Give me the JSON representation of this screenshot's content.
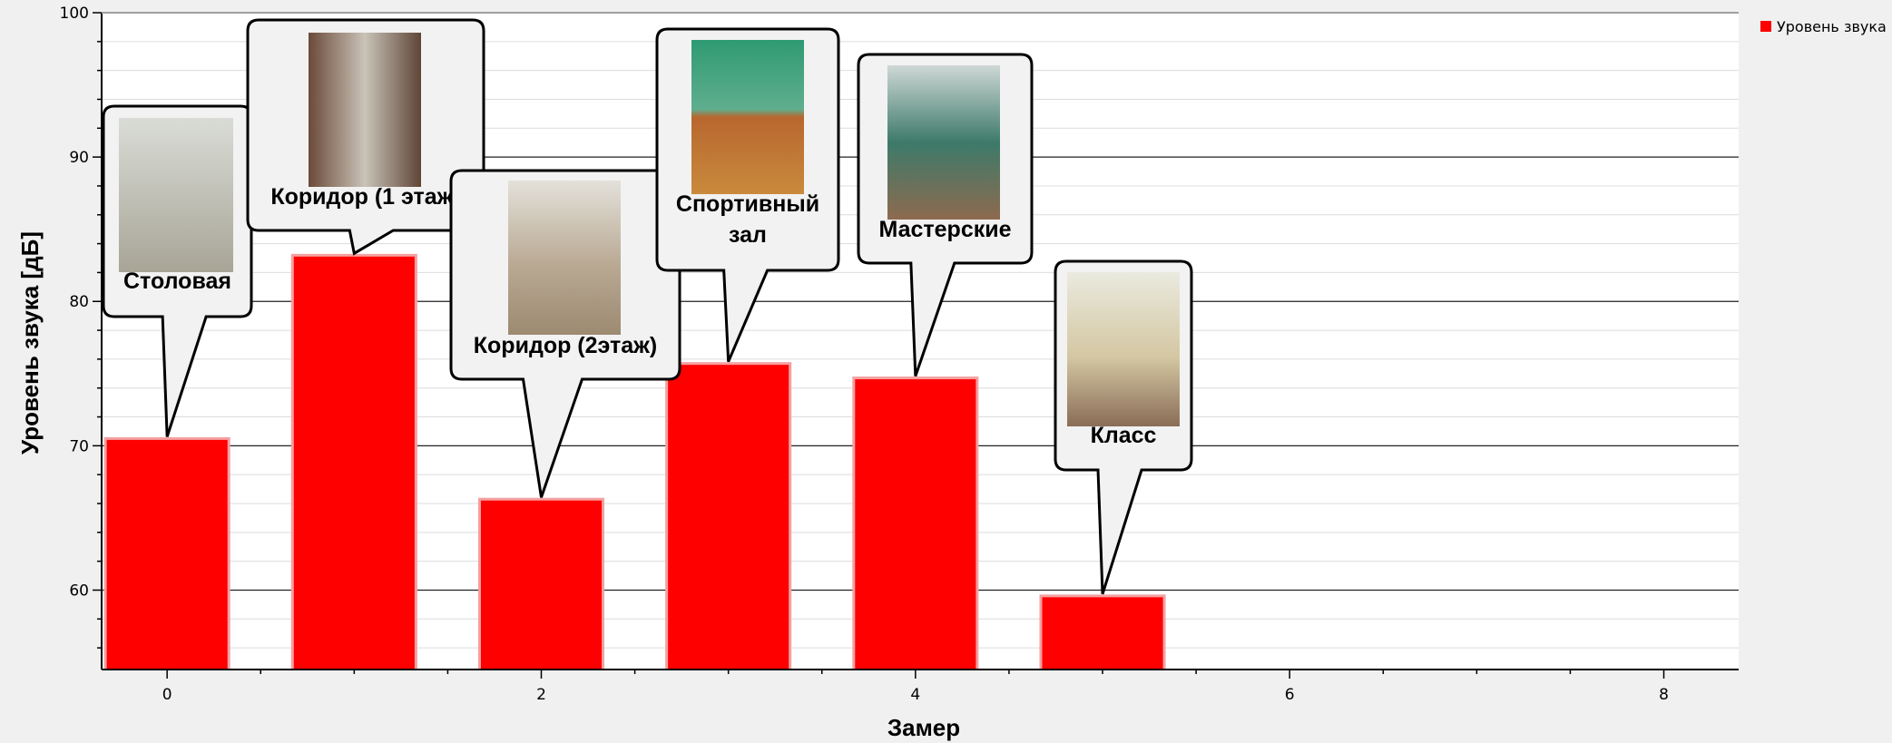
{
  "chart_data": {
    "type": "bar",
    "title": "",
    "xlabel": "Замер",
    "ylabel": "Уровень звука [дБ]",
    "x": [
      0,
      1,
      2,
      3,
      4,
      5
    ],
    "series": [
      {
        "name": "Уровень звука",
        "values": [
          70.5,
          83.2,
          66.3,
          75.7,
          74.7,
          59.6
        ]
      }
    ],
    "xlim": [
      -0.35,
      8.4
    ],
    "ylim": [
      54.5,
      100
    ],
    "xticks": [
      "0",
      "2",
      "4",
      "6",
      "8"
    ],
    "yticks": [
      "60",
      "70",
      "80",
      "90",
      "100"
    ],
    "grid": true,
    "legend": "top-right",
    "bar_color": "#ff0000",
    "annotations": [
      {
        "text": [
          "Столовая"
        ],
        "image": "photo-cafeteria"
      },
      {
        "text": [
          "Коридор (1 этаж)"
        ],
        "image": "photo-corridor-1st-floor"
      },
      {
        "text": [
          "Коридор (2этаж)"
        ],
        "image": "photo-corridor-2nd-floor"
      },
      {
        "text": [
          "Спортивный",
          "зал"
        ],
        "image": "photo-gym"
      },
      {
        "text": [
          "Мастерские"
        ],
        "image": "photo-workshop"
      },
      {
        "text": [
          "Класс"
        ],
        "image": "photo-classroom"
      }
    ]
  }
}
